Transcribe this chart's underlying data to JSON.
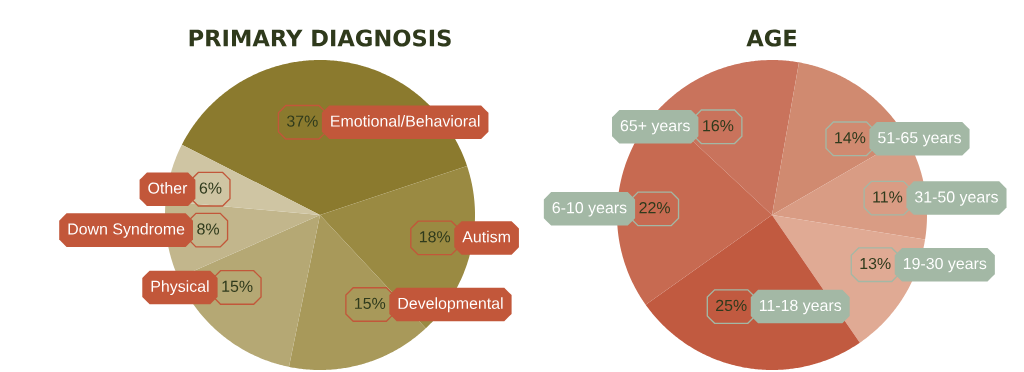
{
  "chart_data": [
    {
      "type": "pie",
      "title": "PRIMARY DIAGNOSIS",
      "categories": [
        "Emotional/Behavioral",
        "Autism",
        "Developmental",
        "Physical",
        "Down Syndrome",
        "Other"
      ],
      "values": [
        37,
        18,
        15,
        15,
        8,
        6
      ],
      "value_labels": [
        "37%",
        "18%",
        "15%",
        "15%",
        "8%",
        "6%"
      ],
      "colors": [
        "#8b7a2e",
        "#9a8a42",
        "#a8995a",
        "#b5a874",
        "#c2b68c",
        "#cfc5a3"
      ]
    },
    {
      "type": "pie",
      "title": "AGE",
      "categories": [
        "65+ years",
        "51-65 years",
        "31-50 years",
        "19-30 years",
        "11-18 years",
        "6-10 years"
      ],
      "values": [
        16,
        14,
        11,
        13,
        25,
        22
      ],
      "value_labels": [
        "16%",
        "14%",
        "11%",
        "13%",
        "25%",
        "22%"
      ],
      "colors": [
        "#c9735c",
        "#d08a70",
        "#d99c84",
        "#e0aa94",
        "#c15a40",
        "#c76a51"
      ]
    }
  ]
}
